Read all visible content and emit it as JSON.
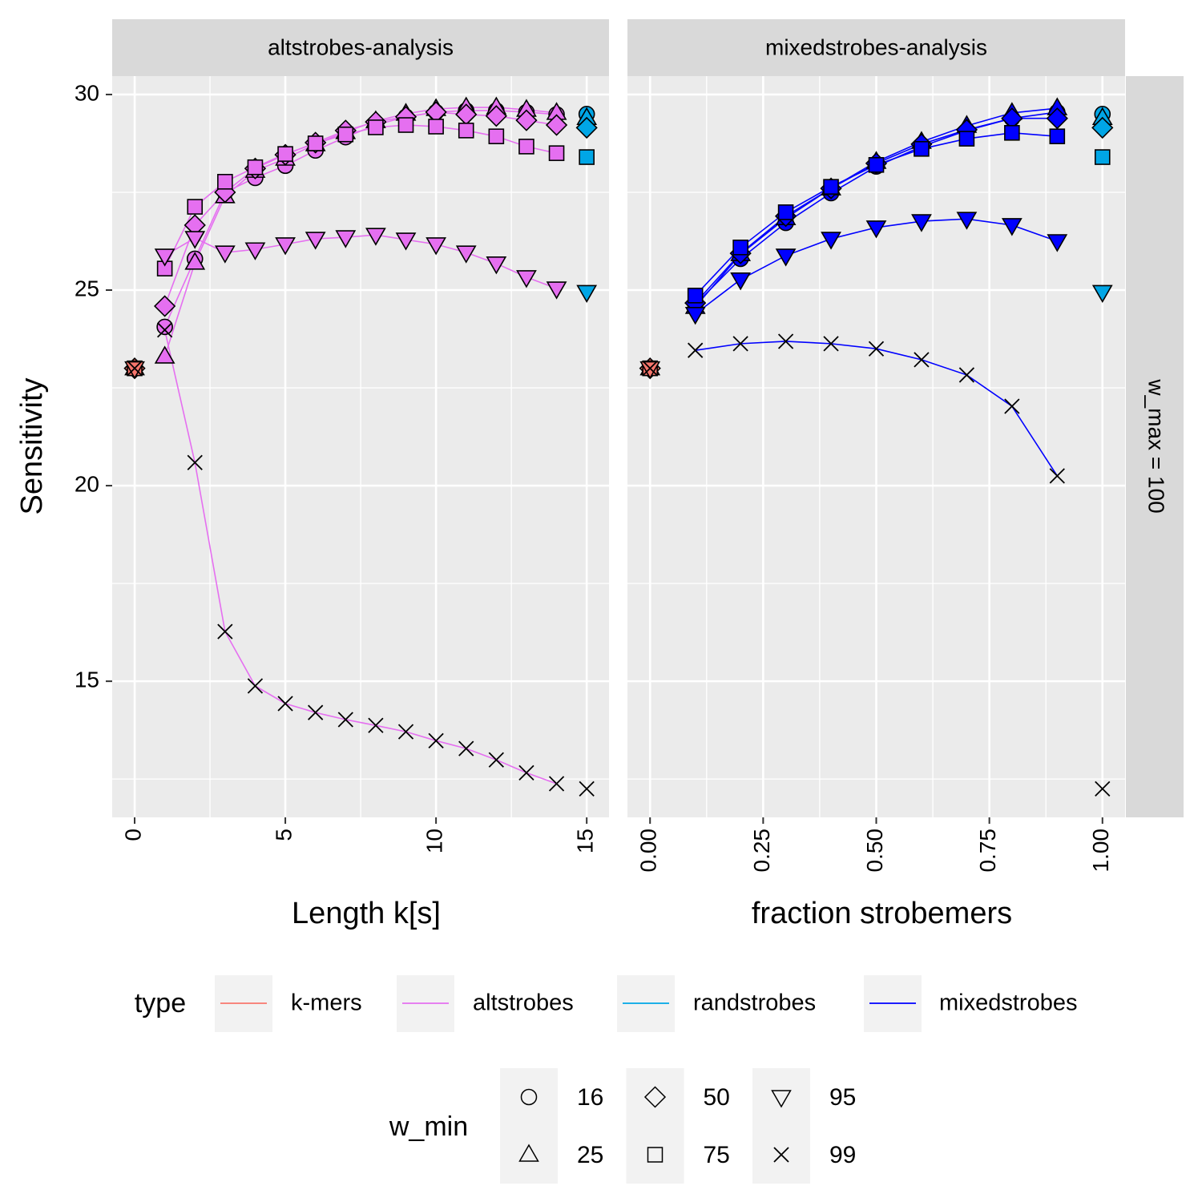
{
  "chart_data": [
    {
      "type": "line",
      "title": "altstrobes-analysis",
      "xlabel": "Length k[s]",
      "ylabel": "Sensitivity",
      "xlim": [
        -0.745,
        15.74
      ],
      "xticks": [
        0,
        5,
        10,
        15
      ],
      "ylim": [
        11.52,
        30.47
      ],
      "yticks": [
        15,
        20,
        25,
        30
      ],
      "grid": true,
      "series": [
        {
          "type": "k-mers",
          "w_min": 16,
          "x": [
            0
          ],
          "values": [
            23
          ]
        },
        {
          "type": "k-mers",
          "w_min": 25,
          "x": [
            0
          ],
          "values": [
            23
          ]
        },
        {
          "type": "k-mers",
          "w_min": 50,
          "x": [
            0
          ],
          "values": [
            23
          ]
        },
        {
          "type": "k-mers",
          "w_min": 75,
          "x": [
            0
          ],
          "values": [
            23
          ]
        },
        {
          "type": "k-mers",
          "w_min": 95,
          "x": [
            0
          ],
          "values": [
            23
          ]
        },
        {
          "type": "k-mers",
          "w_min": 99,
          "x": [
            0
          ],
          "values": [
            23
          ]
        },
        {
          "type": "altstrobes",
          "w_min": 16,
          "x": [
            1,
            2,
            3,
            4,
            5,
            6,
            7,
            8,
            9,
            10,
            11,
            12,
            13,
            14
          ],
          "values": [
            24.06,
            25.8,
            27.5,
            27.87,
            28.18,
            28.57,
            28.91,
            29.22,
            29.43,
            29.55,
            29.59,
            29.59,
            29.55,
            29.49
          ]
        },
        {
          "type": "altstrobes",
          "w_min": 25,
          "x": [
            1,
            2,
            3,
            4,
            5,
            6,
            7,
            8,
            9,
            10,
            11,
            12,
            13,
            14
          ],
          "values": [
            23.3,
            25.7,
            27.4,
            28.05,
            28.36,
            28.73,
            29.04,
            29.32,
            29.51,
            29.63,
            29.67,
            29.67,
            29.61,
            29.53
          ]
        },
        {
          "type": "altstrobes",
          "w_min": 50,
          "x": [
            1,
            2,
            3,
            4,
            5,
            6,
            7,
            8,
            9,
            10,
            11,
            12,
            13,
            14
          ],
          "values": [
            24.59,
            26.66,
            27.5,
            28.11,
            28.46,
            28.77,
            29.08,
            29.3,
            29.43,
            29.55,
            29.49,
            29.45,
            29.34,
            29.22
          ]
        },
        {
          "type": "altstrobes",
          "w_min": 75,
          "x": [
            1,
            2,
            3,
            4,
            5,
            6,
            7,
            8,
            9,
            10,
            11,
            12,
            13,
            14
          ],
          "values": [
            25.55,
            27.13,
            27.77,
            28.14,
            28.48,
            28.75,
            28.98,
            29.16,
            29.22,
            29.18,
            29.08,
            28.93,
            28.67,
            28.5
          ]
        },
        {
          "type": "altstrobes",
          "w_min": 95,
          "x": [
            1,
            2,
            3,
            4,
            5,
            6,
            7,
            8,
            9,
            10,
            11,
            12,
            13,
            14
          ],
          "values": [
            25.88,
            26.33,
            25.96,
            26.04,
            26.17,
            26.31,
            26.35,
            26.41,
            26.29,
            26.17,
            25.96,
            25.68,
            25.33,
            25.04
          ]
        },
        {
          "type": "altstrobes",
          "w_min": 99,
          "x": [
            1,
            2,
            3,
            4,
            5,
            6,
            7,
            8,
            9,
            10,
            11,
            12,
            13,
            14
          ],
          "values": [
            23.98,
            20.59,
            16.27,
            14.88,
            14.43,
            14.2,
            14.02,
            13.87,
            13.71,
            13.48,
            13.28,
            12.99,
            12.66,
            12.38
          ]
        },
        {
          "type": "randstrobes",
          "w_min": 16,
          "x": [
            15
          ],
          "values": [
            29.5
          ]
        },
        {
          "type": "randstrobes",
          "w_min": 25,
          "x": [
            15
          ],
          "values": [
            29.4
          ]
        },
        {
          "type": "randstrobes",
          "w_min": 50,
          "x": [
            15
          ],
          "values": [
            29.15
          ]
        },
        {
          "type": "randstrobes",
          "w_min": 75,
          "x": [
            15
          ],
          "values": [
            28.4
          ]
        },
        {
          "type": "randstrobes",
          "w_min": 95,
          "x": [
            15
          ],
          "values": [
            24.95
          ]
        },
        {
          "type": "randstrobes",
          "w_min": 99,
          "x": [
            15
          ],
          "values": [
            12.25
          ]
        }
      ]
    },
    {
      "type": "line",
      "title": "mixedstrobes-analysis",
      "xlabel": "fraction strobemers",
      "xlim": [
        -0.05,
        1.05
      ],
      "xticks": [
        {
          "value": 0,
          "label": "0.00"
        },
        {
          "value": 0.25,
          "label": "0.25"
        },
        {
          "value": 0.5,
          "label": "0.50"
        },
        {
          "value": 0.75,
          "label": "0.75"
        },
        {
          "value": 1,
          "label": "1.00"
        }
      ],
      "ylim": [
        11.52,
        30.47
      ],
      "yticks": [
        15,
        20,
        25,
        30
      ],
      "grid": true,
      "series": [
        {
          "type": "k-mers",
          "w_min": 16,
          "x": [
            0
          ],
          "values": [
            23
          ]
        },
        {
          "type": "k-mers",
          "w_min": 25,
          "x": [
            0
          ],
          "values": [
            23
          ]
        },
        {
          "type": "k-mers",
          "w_min": 50,
          "x": [
            0
          ],
          "values": [
            23
          ]
        },
        {
          "type": "k-mers",
          "w_min": 75,
          "x": [
            0
          ],
          "values": [
            23
          ]
        },
        {
          "type": "k-mers",
          "w_min": 95,
          "x": [
            0
          ],
          "values": [
            23
          ]
        },
        {
          "type": "k-mers",
          "w_min": 99,
          "x": [
            0
          ],
          "values": [
            23
          ]
        },
        {
          "type": "mixedstrobes",
          "w_min": 16,
          "x": [
            0.1,
            0.2,
            0.3,
            0.4,
            0.5,
            0.6,
            0.7,
            0.8,
            0.9
          ],
          "values": [
            24.63,
            25.8,
            26.72,
            27.48,
            28.16,
            28.67,
            29.08,
            29.39,
            29.55
          ]
        },
        {
          "type": "mixedstrobes",
          "w_min": 25,
          "x": [
            0.1,
            0.2,
            0.3,
            0.4,
            0.5,
            0.6,
            0.7,
            0.8,
            0.9
          ],
          "values": [
            24.57,
            25.92,
            26.84,
            27.6,
            28.28,
            28.79,
            29.2,
            29.53,
            29.65
          ]
        },
        {
          "type": "mixedstrobes",
          "w_min": 50,
          "x": [
            0.1,
            0.2,
            0.3,
            0.4,
            0.5,
            0.6,
            0.7,
            0.8,
            0.9
          ],
          "values": [
            24.67,
            25.94,
            26.89,
            27.6,
            28.24,
            28.73,
            29.1,
            29.39,
            29.39
          ]
        },
        {
          "type": "mixedstrobes",
          "w_min": 75,
          "x": [
            0.1,
            0.2,
            0.3,
            0.4,
            0.5,
            0.6,
            0.7,
            0.8,
            0.9
          ],
          "values": [
            24.86,
            26.09,
            26.99,
            27.64,
            28.2,
            28.61,
            28.87,
            29.02,
            28.93
          ]
        },
        {
          "type": "mixedstrobes",
          "w_min": 95,
          "x": [
            0.1,
            0.2,
            0.3,
            0.4,
            0.5,
            0.6,
            0.7,
            0.8,
            0.9
          ],
          "values": [
            24.39,
            25.27,
            25.88,
            26.31,
            26.6,
            26.76,
            26.82,
            26.66,
            26.25
          ]
        },
        {
          "type": "mixedstrobes",
          "w_min": 99,
          "x": [
            0.1,
            0.2,
            0.3,
            0.4,
            0.5,
            0.6,
            0.7,
            0.8,
            0.9
          ],
          "values": [
            23.46,
            23.63,
            23.69,
            23.63,
            23.5,
            23.22,
            22.83,
            22.03,
            20.25
          ]
        },
        {
          "type": "randstrobes",
          "w_min": 16,
          "x": [
            1
          ],
          "values": [
            29.5
          ]
        },
        {
          "type": "randstrobes",
          "w_min": 25,
          "x": [
            1
          ],
          "values": [
            29.4
          ]
        },
        {
          "type": "randstrobes",
          "w_min": 50,
          "x": [
            1
          ],
          "values": [
            29.15
          ]
        },
        {
          "type": "randstrobes",
          "w_min": 75,
          "x": [
            1
          ],
          "values": [
            28.4
          ]
        },
        {
          "type": "randstrobes",
          "w_min": 95,
          "x": [
            1
          ],
          "values": [
            24.95
          ]
        },
        {
          "type": "randstrobes",
          "w_min": 99,
          "x": [
            1
          ],
          "values": [
            12.25
          ]
        }
      ]
    }
  ],
  "facet_row_label": "w_max = 100",
  "legend": {
    "type": {
      "title": "type",
      "entries": [
        {
          "name": "k-mers",
          "color": "#f8766d"
        },
        {
          "name": "altstrobes",
          "color": "#e56ff0"
        },
        {
          "name": "randstrobes",
          "color": "#00a6e6"
        },
        {
          "name": "mixedstrobes",
          "color": "#0000ff"
        }
      ]
    },
    "w_min": {
      "title": "w_min",
      "entries": [
        {
          "name": 16,
          "shape": "circle"
        },
        {
          "name": 25,
          "shape": "triangle"
        },
        {
          "name": 50,
          "shape": "diamond"
        },
        {
          "name": 75,
          "shape": "square"
        },
        {
          "name": 95,
          "shape": "triangle-down"
        },
        {
          "name": 99,
          "shape": "cross"
        }
      ]
    }
  }
}
